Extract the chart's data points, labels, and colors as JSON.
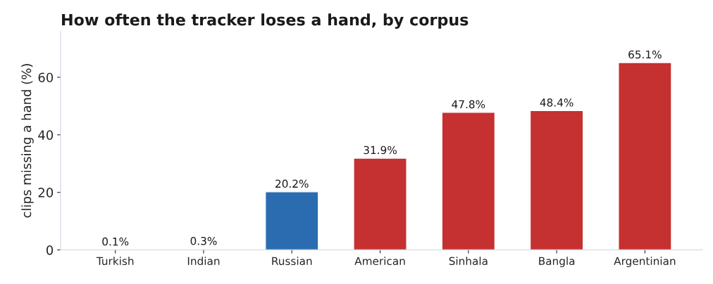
{
  "chart_data": {
    "type": "bar",
    "title": "How often the tracker loses a hand, by corpus",
    "ylabel": "clips missing a hand (%)",
    "categories": [
      "Turkish",
      "Indian",
      "Russian",
      "American",
      "Sinhala",
      "Bangla",
      "Argentinian"
    ],
    "values": [
      0.1,
      0.3,
      20.2,
      31.9,
      47.8,
      48.4,
      65.1
    ],
    "colors": [
      "#2b6cb0",
      "#2b6cb0",
      "#2b6cb0",
      "#c53030",
      "#c53030",
      "#c53030",
      "#c53030"
    ],
    "value_labels": [
      "0.1%",
      "0.3%",
      "20.2%",
      "31.9%",
      "47.8%",
      "48.4%",
      "65.1%"
    ],
    "ylim": [
      0,
      76
    ],
    "yticks": [
      0,
      20,
      40,
      60
    ],
    "grid": false
  }
}
